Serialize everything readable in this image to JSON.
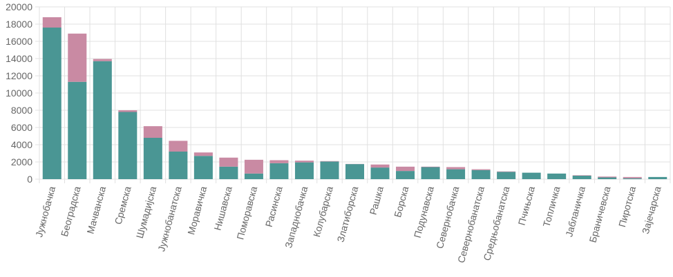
{
  "chart_data": {
    "type": "stacked-bar",
    "categories": [
      "Јужнобачка",
      "Београдска",
      "Мачванска",
      "Сремска",
      "Шумадијска",
      "Јужнобанатска",
      "Моравичка",
      "Нишавска",
      "Поморавска",
      "Расинска",
      "Западнобачка",
      "Колубарска",
      "Златиборска",
      "Рашка",
      "Борска",
      "Подунавска",
      "Севернобачка",
      "Севернобанатска",
      "Средњобанатска",
      "Пчињска",
      "Топличка",
      "Јабланичка",
      "Браничевска",
      "Пиротска",
      "Зајечарска"
    ],
    "series": [
      {
        "color": "#4a9694",
        "values": [
          17600,
          11300,
          13700,
          7800,
          4800,
          3200,
          2700,
          1450,
          650,
          1850,
          1950,
          2050,
          1750,
          1350,
          950,
          1400,
          1150,
          1050,
          850,
          750,
          650,
          400,
          200,
          100,
          250
        ]
      },
      {
        "color": "#c98aa3",
        "values": [
          1200,
          5600,
          250,
          200,
          1350,
          1250,
          400,
          1050,
          1600,
          350,
          200,
          50,
          20,
          350,
          500,
          50,
          250,
          100,
          50,
          0,
          0,
          50,
          100,
          150,
          0
        ]
      }
    ],
    "ylim": [
      0,
      20000
    ],
    "yticks": [
      0,
      2000,
      4000,
      6000,
      8000,
      10000,
      12000,
      14000,
      16000,
      18000,
      20000
    ],
    "grid": true
  }
}
